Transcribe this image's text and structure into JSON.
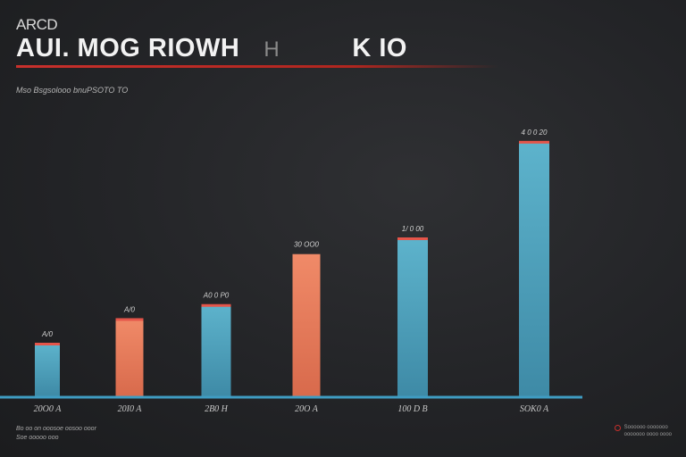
{
  "header": {
    "kicker": "ARCD",
    "title_main": "AUI. MOG RIOWH",
    "title_dim": "H",
    "title_tail": "K IO",
    "subtitle": "Mso Bsgsolooo bnuPSOTO TO"
  },
  "footer": {
    "note_line1": "Bo oo on ooosoe oosoo ooor",
    "note_line2": "Soe ooooo ooo",
    "source_line1": "Soooooo ooooooo",
    "source_line2": "ooooooo oooo oooo"
  },
  "colors": {
    "teal": "#4fa3be",
    "coral": "#e87d5e",
    "cap": "#e5554a",
    "axis": "#3f9cc2"
  },
  "chart_data": {
    "type": "bar",
    "categories": [
      "20O0 A",
      "20I0 A",
      "2B0 H",
      "20O A",
      "100 D B",
      "SOK0 A"
    ],
    "values": [
      60,
      88,
      104,
      162,
      180,
      290
    ],
    "data_labels": [
      "A/0",
      "A/0",
      "A0 0 P0",
      "30 OO0",
      "1/ 0 00",
      "4 0 0 20"
    ],
    "bar_colors": [
      "#4fa3be",
      "#e87d5e",
      "#4fa3be",
      "#e87d5e",
      "#4fa3be",
      "#4fa3be"
    ],
    "ylim": [
      0,
      300
    ],
    "grid": false
  }
}
